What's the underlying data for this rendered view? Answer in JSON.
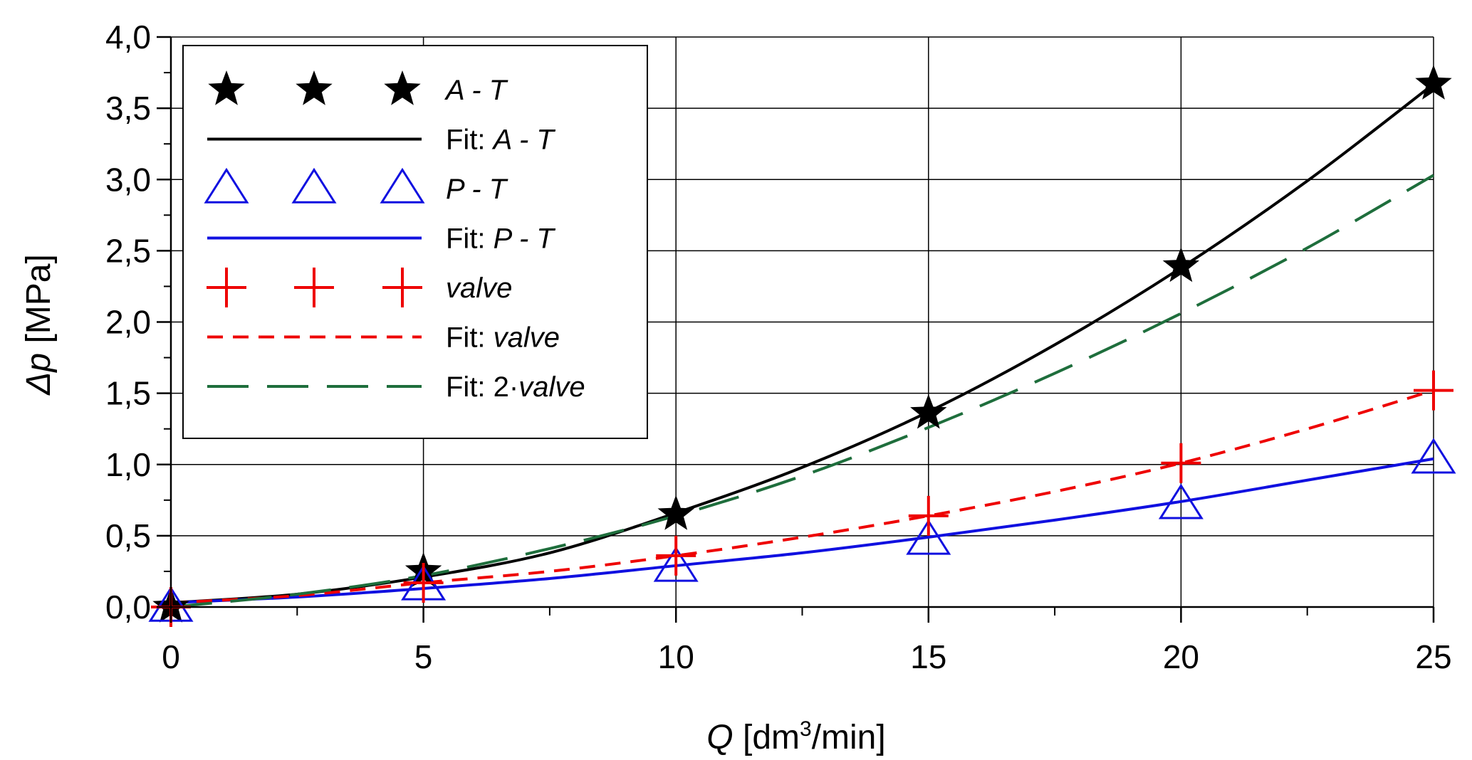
{
  "chart_data": {
    "type": "scatter",
    "xlabel": {
      "var": "Q",
      "unit_pre": " [dm",
      "unit_sup": "3",
      "unit_post": "/min]"
    },
    "ylabel": {
      "var": "Δp",
      "unit": " [MPa]"
    },
    "xlim": [
      0,
      25
    ],
    "ylim": [
      0,
      4
    ],
    "grid": true,
    "legend_position": "top-left",
    "x_ticks": [
      0,
      5,
      10,
      15,
      20,
      25
    ],
    "x_tick_labels": [
      "0",
      "5",
      "10",
      "15",
      "20",
      "25"
    ],
    "x_minor_ticks": [
      2.5,
      7.5,
      12.5,
      17.5,
      22.5
    ],
    "y_ticks": [
      0,
      0.5,
      1,
      1.5,
      2,
      2.5,
      3,
      3.5,
      4
    ],
    "y_tick_labels": [
      "0,0",
      "0,5",
      "1,0",
      "1,5",
      "2,0",
      "2,5",
      "3,0",
      "3,5",
      "4,0"
    ],
    "y_minor_ticks": [
      0.25,
      0.75,
      1.25,
      1.75,
      2.25,
      2.75,
      3.25,
      3.75
    ],
    "series": [
      {
        "name": "A - T",
        "kind": "markers",
        "marker": "star",
        "color": "#000000",
        "x": [
          0,
          5,
          10,
          15,
          20,
          25
        ],
        "y": [
          0.0,
          0.25,
          0.65,
          1.36,
          2.39,
          3.67
        ]
      },
      {
        "name": "Fit: A - T",
        "kind": "line",
        "dash": "solid",
        "color": "#000000",
        "x": [
          0,
          2.5,
          5,
          7.5,
          10,
          12.5,
          15,
          17.5,
          20,
          22.5,
          25
        ],
        "y": [
          0.03,
          0.09,
          0.21,
          0.38,
          0.66,
          0.98,
          1.37,
          1.84,
          2.38,
          2.99,
          3.67
        ]
      },
      {
        "name": "P - T",
        "kind": "markers",
        "marker": "triangle",
        "color": "#1010e0",
        "x": [
          0,
          5,
          10,
          15,
          20,
          25
        ],
        "y": [
          0.0,
          0.15,
          0.28,
          0.47,
          0.72,
          1.04
        ]
      },
      {
        "name": "Fit: P - T",
        "kind": "line",
        "dash": "solid",
        "color": "#1010e0",
        "x": [
          0,
          2.5,
          5,
          7.5,
          10,
          12.5,
          15,
          17.5,
          20,
          22.5,
          25
        ],
        "y": [
          0.03,
          0.07,
          0.13,
          0.2,
          0.29,
          0.38,
          0.49,
          0.61,
          0.74,
          0.89,
          1.04
        ]
      },
      {
        "name": "valve",
        "kind": "markers",
        "marker": "plus",
        "color": "#ee0000",
        "x": [
          0,
          5,
          10,
          15,
          20,
          25
        ],
        "y": [
          0.0,
          0.17,
          0.36,
          0.64,
          1.01,
          1.52
        ]
      },
      {
        "name": "Fit: valve",
        "kind": "line",
        "dash": "short",
        "color": "#ee0000",
        "x": [
          0,
          2.5,
          5,
          7.5,
          10,
          12.5,
          15,
          17.5,
          20,
          22.5,
          25
        ],
        "y": [
          0.03,
          0.08,
          0.17,
          0.25,
          0.36,
          0.49,
          0.64,
          0.81,
          1.01,
          1.25,
          1.52
        ]
      },
      {
        "name": "Fit: 2·valve",
        "kind": "line",
        "dash": "long",
        "color": "#1e6e3c",
        "x": [
          0,
          2.5,
          5,
          7.5,
          10,
          12.5,
          15,
          17.5,
          20,
          22.5,
          25
        ],
        "y": [
          0.0,
          0.09,
          0.22,
          0.41,
          0.64,
          0.92,
          1.26,
          1.64,
          2.06,
          2.52,
          3.03
        ]
      }
    ],
    "legend": [
      {
        "series": 0,
        "label_prefix": "",
        "label_italic": "A - T"
      },
      {
        "series": 1,
        "label_prefix": "Fit: ",
        "label_italic": "A - T"
      },
      {
        "series": 2,
        "label_prefix": "",
        "label_italic": "P - T"
      },
      {
        "series": 3,
        "label_prefix": "Fit: ",
        "label_italic": "P - T"
      },
      {
        "series": 4,
        "label_prefix": "",
        "label_italic": "valve"
      },
      {
        "series": 5,
        "label_prefix": "Fit: ",
        "label_italic": "valve"
      },
      {
        "series": 6,
        "label_prefix": "Fit: 2·",
        "label_italic": "valve"
      }
    ]
  }
}
